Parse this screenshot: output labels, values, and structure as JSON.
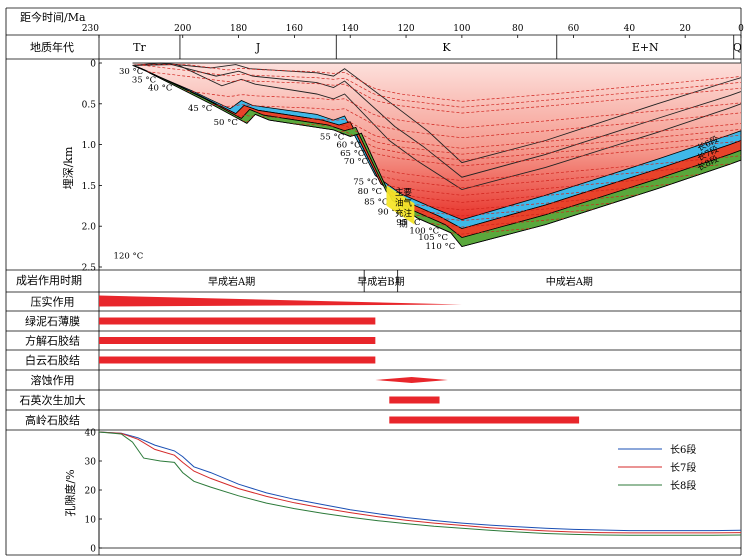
{
  "time_axis": {
    "label": "距今时间/Ma",
    "ticks": [
      230,
      200,
      180,
      160,
      140,
      120,
      100,
      80,
      60,
      40,
      20,
      0
    ],
    "range": [
      230,
      0
    ]
  },
  "geologic_age": {
    "label": "地质年代",
    "periods": [
      {
        "name": "Tr",
        "start": 230,
        "end": 201
      },
      {
        "name": "J",
        "start": 201,
        "end": 145
      },
      {
        "name": "K",
        "start": 145,
        "end": 66
      },
      {
        "name": "E+N",
        "start": 66,
        "end": 2.6
      },
      {
        "name": "Q",
        "start": 2.6,
        "end": 0
      }
    ]
  },
  "diagenesis_stage": {
    "label": "成岩作用时期",
    "stages": [
      {
        "name": "早成岩A期",
        "start": 230,
        "end": 135
      },
      {
        "name": "早成岩B期",
        "start": 135,
        "end": 123
      },
      {
        "name": "中成岩A期",
        "start": 123,
        "end": 0
      }
    ]
  },
  "chart_data": [
    {
      "type": "area",
      "ylabel": "埋深/km",
      "yticks": [
        0,
        0.5,
        1.0,
        1.5,
        2.0,
        2.5
      ],
      "yticklabels": [
        "0",
        "0.5",
        "1.0",
        "1.5",
        "2.0",
        "2.5"
      ],
      "ylim": [
        0,
        2.5
      ],
      "xlim": [
        230,
        0
      ],
      "layers": [
        {
          "name": "长6段",
          "color": "#3fb8e8",
          "top": [
            [
              218,
              0.03
            ],
            [
              196,
              0.35
            ],
            [
              190,
              0.45
            ],
            [
              183,
              0.56
            ],
            [
              179,
              0.46
            ],
            [
              175,
              0.52
            ],
            [
              152,
              0.63
            ],
            [
              146,
              0.7
            ],
            [
              142,
              0.65
            ],
            [
              131,
              1.38
            ],
            [
              122,
              1.6
            ],
            [
              110,
              1.78
            ],
            [
              100,
              1.92
            ],
            [
              70,
              1.62
            ],
            [
              30,
              1.18
            ],
            [
              4,
              0.88
            ],
            [
              0,
              0.83
            ]
          ]
        },
        {
          "name": "长7段",
          "color": "#e8432a",
          "top": [
            [
              216,
              0.05
            ],
            [
              194,
              0.4
            ],
            [
              188,
              0.5
            ],
            [
              181,
              0.62
            ],
            [
              178,
              0.52
            ],
            [
              173,
              0.58
            ],
            [
              150,
              0.7
            ],
            [
              144,
              0.76
            ],
            [
              140,
              0.72
            ],
            [
              129,
              1.48
            ],
            [
              120,
              1.7
            ],
            [
              108,
              1.88
            ],
            [
              100,
              2.03
            ],
            [
              70,
              1.74
            ],
            [
              30,
              1.3
            ],
            [
              4,
              1.0
            ],
            [
              0,
              0.95
            ]
          ]
        },
        {
          "name": "长8段",
          "color": "#5aa83c",
          "top": [
            [
              214,
              0.08
            ],
            [
              192,
              0.44
            ],
            [
              186,
              0.55
            ],
            [
              179,
              0.68
            ],
            [
              176,
              0.57
            ],
            [
              171,
              0.64
            ],
            [
              148,
              0.76
            ],
            [
              142,
              0.83
            ],
            [
              138,
              0.79
            ],
            [
              127,
              1.58
            ],
            [
              118,
              1.8
            ],
            [
              106,
              1.98
            ],
            [
              100,
              2.14
            ],
            [
              70,
              1.86
            ],
            [
              30,
              1.42
            ],
            [
              4,
              1.12
            ],
            [
              0,
              1.07
            ]
          ]
        }
      ],
      "base": [
        [
          212,
          0.12
        ],
        [
          190,
          0.5
        ],
        [
          184,
          0.61
        ],
        [
          177,
          0.74
        ],
        [
          174,
          0.63
        ],
        [
          169,
          0.7
        ],
        [
          146,
          0.82
        ],
        [
          140,
          0.9
        ],
        [
          136,
          0.86
        ],
        [
          125,
          1.68
        ],
        [
          116,
          1.9
        ],
        [
          104,
          2.08
        ],
        [
          100,
          2.25
        ],
        [
          70,
          1.98
        ],
        [
          30,
          1.54
        ],
        [
          4,
          1.24
        ],
        [
          0,
          1.19
        ]
      ],
      "upper_horizons": [
        [
          [
            218,
            0.03
          ],
          [
            202,
            0.02
          ],
          [
            186,
            0.28
          ],
          [
            179,
            0.2
          ],
          [
            174,
            0.26
          ],
          [
            152,
            0.38
          ],
          [
            146,
            0.44
          ],
          [
            142,
            0.38
          ],
          [
            126,
            0.95
          ],
          [
            116,
            1.2
          ],
          [
            100,
            1.55
          ],
          [
            70,
            1.28
          ],
          [
            30,
            0.85
          ],
          [
            4,
            0.55
          ],
          [
            0,
            0.5
          ]
        ],
        [
          [
            218,
            0.03
          ],
          [
            205,
            0.01
          ],
          [
            188,
            0.16
          ],
          [
            180,
            0.1
          ],
          [
            175,
            0.16
          ],
          [
            152,
            0.24
          ],
          [
            146,
            0.3
          ],
          [
            142,
            0.22
          ],
          [
            124,
            0.78
          ],
          [
            114,
            1.02
          ],
          [
            100,
            1.4
          ],
          [
            70,
            1.12
          ],
          [
            30,
            0.68
          ],
          [
            4,
            0.4
          ],
          [
            0,
            0.35
          ]
        ],
        [
          [
            218,
            0.03
          ],
          [
            208,
            0.0
          ],
          [
            190,
            0.06
          ],
          [
            181,
            0.02
          ],
          [
            176,
            0.07
          ],
          [
            152,
            0.12
          ],
          [
            146,
            0.16
          ],
          [
            142,
            0.07
          ],
          [
            122,
            0.58
          ],
          [
            112,
            0.84
          ],
          [
            100,
            1.22
          ],
          [
            70,
            0.95
          ],
          [
            30,
            0.5
          ],
          [
            4,
            0.22
          ],
          [
            0,
            0.18
          ]
        ]
      ],
      "isotherms": [
        {
          "label": "30 °C",
          "depth": 0.1
        },
        {
          "label": "35 °C",
          "depth": 0.2
        },
        {
          "label": "40 °C",
          "depth": 0.3
        },
        {
          "label": "45 °C",
          "depth": 0.55
        },
        {
          "label": "50 °C",
          "depth": 0.72
        },
        {
          "label": "55 °C",
          "depth": 0.9
        },
        {
          "label": "60 °C",
          "depth": 1.0
        },
        {
          "label": "65 °C",
          "depth": 1.1
        },
        {
          "label": "70 °C",
          "depth": 1.2
        },
        {
          "label": "75 °C",
          "depth": 1.45
        },
        {
          "label": "80 °C",
          "depth": 1.57
        },
        {
          "label": "85 °C",
          "depth": 1.7
        },
        {
          "label": "90 °C",
          "depth": 1.82
        },
        {
          "label": "95 °C",
          "depth": 1.95
        },
        {
          "label": "100 °C",
          "depth": 2.05
        },
        {
          "label": "105 °C",
          "depth": 2.13
        },
        {
          "label": "110 °C",
          "depth": 2.24
        },
        {
          "label": "120 °C",
          "depth": 2.36
        }
      ],
      "annotations": [
        {
          "text": "主要油气充注期",
          "lines": [
            "主要",
            "油气",
            "充注",
            "期"
          ],
          "x_range": [
            127,
            117
          ],
          "color": "#f5e62a"
        }
      ]
    },
    {
      "type": "bar",
      "label": "成岩作用时期",
      "process_color": "#e8262b",
      "rows": [
        {
          "name": "压实作用",
          "shape": "wedge",
          "start": 230,
          "end": 100
        },
        {
          "name": "绿泥石薄膜",
          "shape": "bar",
          "start": 230,
          "end": 131
        },
        {
          "name": "方解石胶结",
          "shape": "bar",
          "start": 230,
          "end": 131
        },
        {
          "name": "白云石胶结",
          "shape": "bar",
          "start": 230,
          "end": 131
        },
        {
          "name": "溶蚀作用",
          "shape": "spindle",
          "start": 131,
          "end": 105
        },
        {
          "name": "石英次生加大",
          "shape": "bar",
          "start": 126,
          "end": 108
        },
        {
          "name": "高岭石胶结",
          "shape": "bar",
          "start": 126,
          "end": 58
        }
      ]
    },
    {
      "type": "line",
      "ylabel": "孔隙度/%",
      "yticks": [
        0,
        10,
        20,
        30,
        40
      ],
      "ylim": [
        0,
        40
      ],
      "xlim": [
        230,
        0
      ],
      "series": [
        {
          "name": "长6段",
          "color": "#1a4fb4",
          "x": [
            230,
            222,
            216,
            210,
            203,
            200,
            196,
            190,
            180,
            170,
            160,
            150,
            140,
            130,
            120,
            110,
            100,
            90,
            80,
            70,
            60,
            50,
            40,
            30,
            20,
            10,
            0
          ],
          "y": [
            40,
            39.6,
            38.0,
            35.5,
            33.5,
            31.5,
            28.0,
            26.0,
            22.0,
            19.0,
            16.8,
            15.0,
            13.2,
            11.8,
            10.5,
            9.5,
            8.6,
            7.9,
            7.3,
            6.8,
            6.4,
            6.2,
            6.0,
            6.0,
            6.0,
            6.0,
            6.1
          ]
        },
        {
          "name": "长7段",
          "color": "#d42a2a",
          "x": [
            230,
            222,
            216,
            210,
            203,
            200,
            196,
            190,
            180,
            170,
            160,
            150,
            140,
            130,
            120,
            110,
            100,
            90,
            80,
            70,
            60,
            50,
            40,
            30,
            20,
            10,
            0
          ],
          "y": [
            40,
            39.5,
            37.5,
            34.0,
            32.0,
            29.5,
            26.5,
            24.0,
            20.5,
            17.8,
            15.6,
            13.8,
            12.2,
            10.8,
            9.6,
            8.6,
            7.8,
            7.0,
            6.4,
            5.9,
            5.5,
            5.3,
            5.2,
            5.2,
            5.2,
            5.2,
            5.3
          ]
        },
        {
          "name": "长8段",
          "color": "#2c7a3a",
          "x": [
            230,
            222,
            218,
            214,
            208,
            203,
            200,
            196,
            190,
            180,
            170,
            160,
            150,
            140,
            130,
            120,
            110,
            100,
            90,
            80,
            70,
            60,
            50,
            40,
            30,
            20,
            10,
            0
          ],
          "y": [
            40,
            39.3,
            36.5,
            31.0,
            30.0,
            29.5,
            26.0,
            23.0,
            21.0,
            18.0,
            15.5,
            13.6,
            12.0,
            10.6,
            9.4,
            8.4,
            7.5,
            6.8,
            6.1,
            5.5,
            5.0,
            4.7,
            4.5,
            4.4,
            4.4,
            4.4,
            4.4,
            4.5
          ]
        }
      ],
      "legend": "top-right"
    }
  ]
}
